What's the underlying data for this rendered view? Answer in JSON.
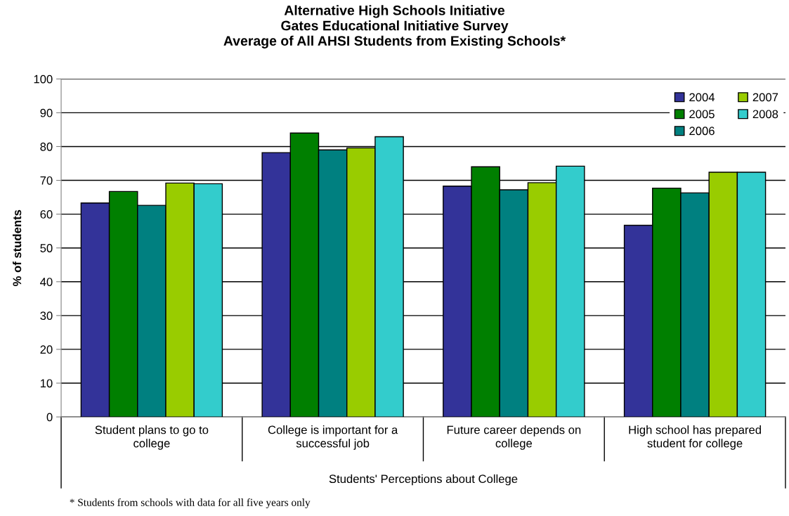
{
  "chart_data": {
    "type": "bar",
    "title": "Alternative High Schools Initiative\nGates Educational Initiative Survey\nAverage of All AHSI Students from Existing Schools*",
    "xlabel": "Students' Perceptions about College",
    "ylabel": "% of students",
    "categories": [
      "Student plans to go to\ncollege",
      "College is important for a\nsuccessful job",
      "Future career depends on\ncollege",
      "High school has prepared\nstudent for college"
    ],
    "series": [
      {
        "name": "2004",
        "color": "#333399",
        "values": [
          63.3,
          78.2,
          68.3,
          56.7
        ]
      },
      {
        "name": "2005",
        "color": "#007f00",
        "values": [
          66.7,
          84.0,
          74.0,
          67.7
        ]
      },
      {
        "name": "2006",
        "color": "#008080",
        "values": [
          62.6,
          79.0,
          67.2,
          66.3
        ]
      },
      {
        "name": "2007",
        "color": "#99cc00",
        "values": [
          69.2,
          79.6,
          69.3,
          72.4
        ]
      },
      {
        "name": "2008",
        "color": "#33cccc",
        "values": [
          69.0,
          82.9,
          74.2,
          72.4
        ]
      }
    ],
    "ylim": [
      0,
      100
    ],
    "yticks": [
      0,
      10,
      20,
      30,
      40,
      50,
      60,
      70,
      80,
      90,
      100
    ],
    "grid": "y",
    "legend": "top right",
    "annotations": [
      "* Students from schools with data for all five years only"
    ]
  }
}
